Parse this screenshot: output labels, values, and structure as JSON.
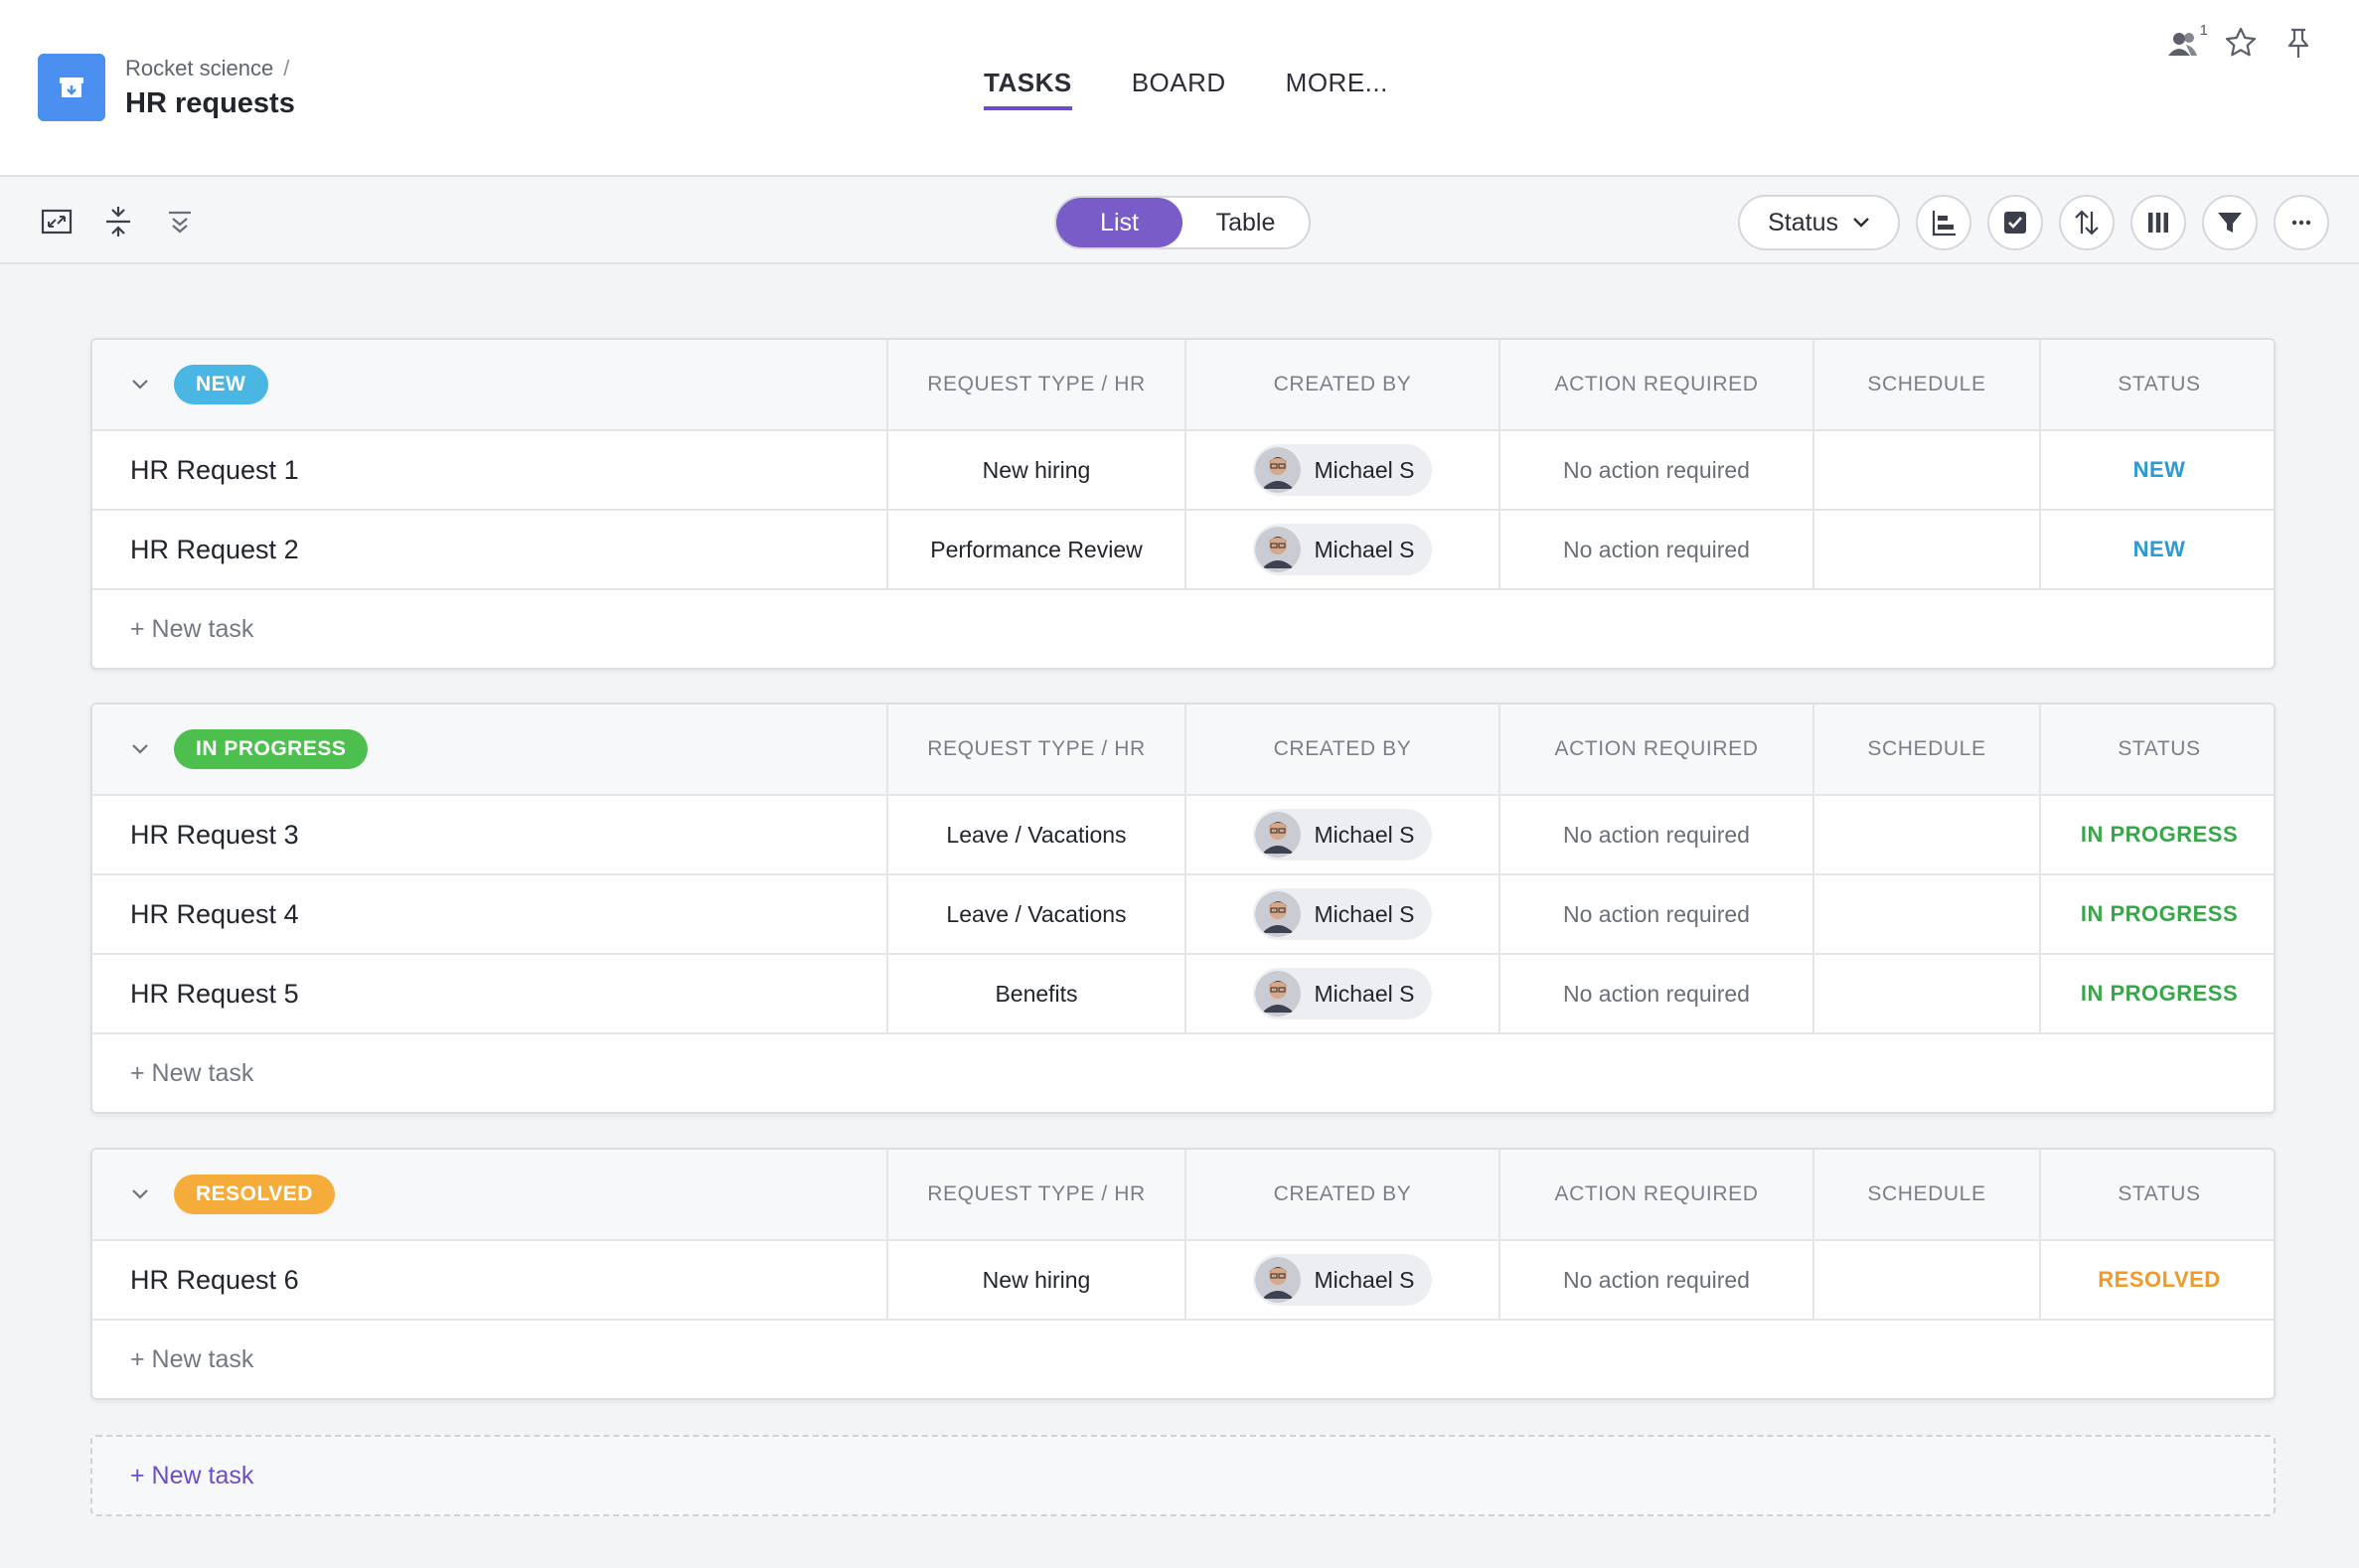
{
  "header": {
    "breadcrumb": "Rocket science",
    "breadcrumb_sep": "/",
    "title": "HR requests",
    "tabs": [
      {
        "label": "TASKS",
        "active": true
      },
      {
        "label": "BOARD",
        "active": false
      },
      {
        "label": "MORE..."
      }
    ],
    "members_count": "1",
    "icons": [
      "members-icon",
      "star-icon",
      "pin-icon"
    ]
  },
  "toolbar": {
    "left_icons": [
      "expand-icon",
      "collapse-rows-icon",
      "collapse-groups-icon"
    ],
    "view_list": "List",
    "view_table": "Table",
    "group_by": "Status",
    "right_icons": [
      "gantt-icon",
      "checkbox-icon",
      "sort-icon",
      "columns-icon",
      "filter-icon",
      "more-icon"
    ]
  },
  "columns": {
    "type": "REQUEST TYPE / HR",
    "created_by": "CREATED BY",
    "action": "ACTION REQUIRED",
    "schedule": "SCHEDULE",
    "status": "STATUS"
  },
  "groups": [
    {
      "label": "NEW",
      "color": "#4ab6e4",
      "text_color": "#2b9ad6",
      "rows": [
        {
          "name": "HR Request 1",
          "type": "New hiring",
          "created_by": "Michael S",
          "action": "No action required",
          "status": "NEW"
        },
        {
          "name": "HR Request 2",
          "type": "Performance Review",
          "created_by": "Michael S",
          "action": "No action required",
          "status": "NEW"
        }
      ]
    },
    {
      "label": "IN PROGRESS",
      "color": "#4cbf4f",
      "text_color": "#3aa64a",
      "rows": [
        {
          "name": "HR Request 3",
          "type": "Leave / Vacations",
          "created_by": "Michael S",
          "action": "No action required",
          "status": "IN PROGRESS"
        },
        {
          "name": "HR Request 4",
          "type": "Leave / Vacations",
          "created_by": "Michael S",
          "action": "No action required",
          "status": "IN PROGRESS"
        },
        {
          "name": "HR Request 5",
          "type": "Benefits",
          "created_by": "Michael S",
          "action": "No action required",
          "status": "IN PROGRESS"
        }
      ]
    },
    {
      "label": "RESOLVED",
      "color": "#f6ac3b",
      "text_color": "#ef9a2a",
      "rows": [
        {
          "name": "HR Request 6",
          "type": "New hiring",
          "created_by": "Michael S",
          "action": "No action required",
          "status": "RESOLVED"
        }
      ]
    }
  ],
  "new_task_label": "+ New task",
  "bottom_new_task_label": "+  New task"
}
